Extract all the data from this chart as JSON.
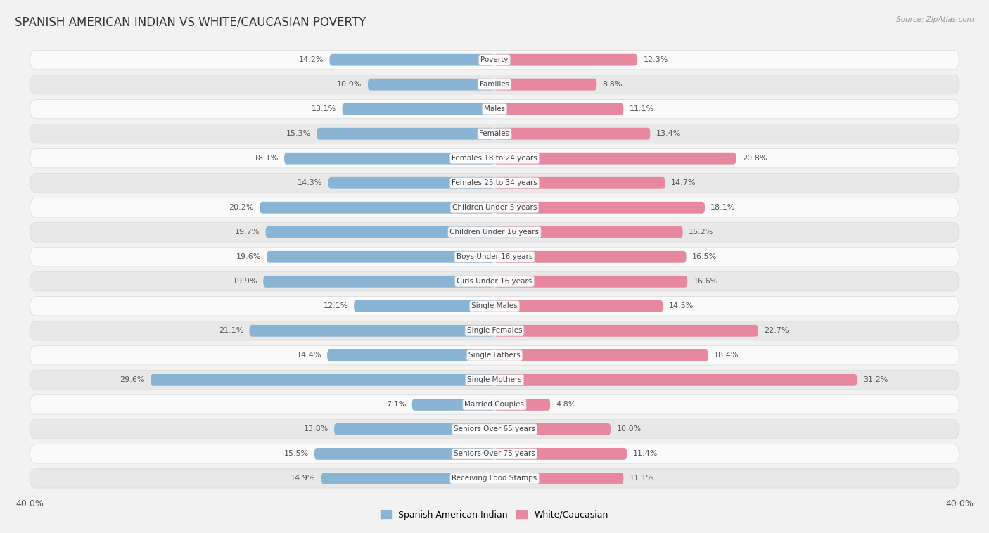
{
  "title": "SPANISH AMERICAN INDIAN VS WHITE/CAUCASIAN POVERTY",
  "source": "Source: ZipAtlas.com",
  "categories": [
    "Poverty",
    "Families",
    "Males",
    "Females",
    "Females 18 to 24 years",
    "Females 25 to 34 years",
    "Children Under 5 years",
    "Children Under 16 years",
    "Boys Under 16 years",
    "Girls Under 16 years",
    "Single Males",
    "Single Females",
    "Single Fathers",
    "Single Mothers",
    "Married Couples",
    "Seniors Over 65 years",
    "Seniors Over 75 years",
    "Receiving Food Stamps"
  ],
  "left_values": [
    14.2,
    10.9,
    13.1,
    15.3,
    18.1,
    14.3,
    20.2,
    19.7,
    19.6,
    19.9,
    12.1,
    21.1,
    14.4,
    29.6,
    7.1,
    13.8,
    15.5,
    14.9
  ],
  "right_values": [
    12.3,
    8.8,
    11.1,
    13.4,
    20.8,
    14.7,
    18.1,
    16.2,
    16.5,
    16.6,
    14.5,
    22.7,
    18.4,
    31.2,
    4.8,
    10.0,
    11.4,
    11.1
  ],
  "left_color": "#8ab4d4",
  "right_color": "#e8889e",
  "left_label": "Spanish American Indian",
  "right_label": "White/Caucasian",
  "axis_max": 40.0,
  "page_bg": "#f2f2f2",
  "row_bg_light": "#fafafa",
  "row_bg_dark": "#e8e8e8",
  "row_border": "#d8d8d8",
  "title_fontsize": 12,
  "value_fontsize": 8,
  "category_fontsize": 7.5,
  "legend_fontsize": 9
}
